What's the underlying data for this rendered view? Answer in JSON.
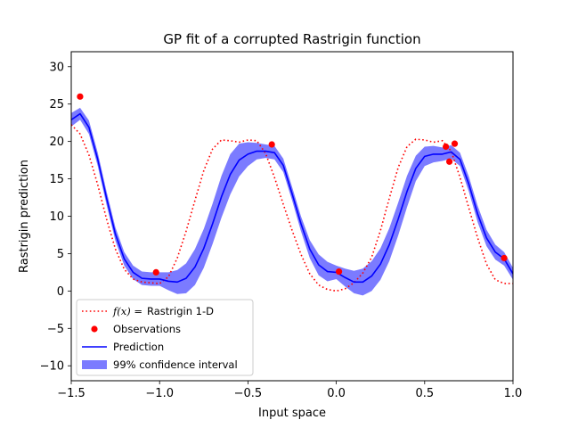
{
  "chart_data": {
    "type": "line",
    "title": "GP fit of a corrupted Rastrigin function",
    "xlabel": "Input space",
    "ylabel": "Rastrigin prediction",
    "xlim": [
      -1.5,
      1.0
    ],
    "ylim": [
      -12,
      32
    ],
    "x_ticks": [
      -1.5,
      -1.0,
      -0.5,
      0.0,
      0.5,
      1.0
    ],
    "x_tick_labels": [
      "−1.5",
      "−1.0",
      "−0.5",
      "0.0",
      "0.5",
      "1.0"
    ],
    "y_ticks": [
      -10,
      -5,
      0,
      5,
      10,
      15,
      20,
      25,
      30
    ],
    "y_tick_labels": [
      "−10",
      "−5",
      "0",
      "5",
      "10",
      "15",
      "20",
      "25",
      "30"
    ],
    "grid": false,
    "legend_position": "lower-left",
    "colors": {
      "true_function": "#ff0000",
      "observations": "#ff0000",
      "prediction": "#0000ff",
      "confidence": "#7b7bff"
    },
    "series": [
      {
        "name": "Rastrigin 1-D",
        "legend_prefix": "f(x) =",
        "style": "dotted",
        "x": [
          -1.5,
          -1.45,
          -1.4,
          -1.35,
          -1.3,
          -1.25,
          -1.2,
          -1.15,
          -1.1,
          -1.05,
          -1.0,
          -0.95,
          -0.9,
          -0.85,
          -0.8,
          -0.75,
          -0.7,
          -0.65,
          -0.6,
          -0.55,
          -0.5,
          -0.45,
          -0.4,
          -0.35,
          -0.3,
          -0.25,
          -0.2,
          -0.15,
          -0.1,
          -0.05,
          0.0,
          0.05,
          0.1,
          0.15,
          0.2,
          0.25,
          0.3,
          0.35,
          0.4,
          0.45,
          0.5,
          0.55,
          0.6,
          0.65,
          0.7,
          0.75,
          0.8,
          0.85,
          0.9,
          0.95,
          1.0
        ],
        "y": [
          22.25,
          21.0,
          18.2,
          14.2,
          9.6,
          5.6,
          2.9,
          1.6,
          1.2,
          1.1,
          1.0,
          1.9,
          4.4,
          8.0,
          12.1,
          16.1,
          19.0,
          20.2,
          20.1,
          19.9,
          20.2,
          20.1,
          18.4,
          15.2,
          11.6,
          8.1,
          4.9,
          2.3,
          0.8,
          0.2,
          0.0,
          0.3,
          1.1,
          2.4,
          4.5,
          8.1,
          12.4,
          16.5,
          19.3,
          20.3,
          20.2,
          19.9,
          20.1,
          18.7,
          15.2,
          11.1,
          7.1,
          3.6,
          1.5,
          1.0,
          1.0
        ]
      },
      {
        "name": "Observations",
        "style": "markers",
        "x": [
          -1.45,
          -1.02,
          -0.365,
          0.015,
          0.62,
          0.64,
          0.67,
          0.95
        ],
        "y": [
          26.0,
          2.5,
          19.6,
          2.6,
          19.3,
          17.3,
          19.7,
          4.4
        ]
      },
      {
        "name": "Prediction",
        "style": "solid",
        "x": [
          -1.5,
          -1.45,
          -1.4,
          -1.35,
          -1.3,
          -1.25,
          -1.2,
          -1.15,
          -1.1,
          -1.05,
          -1.0,
          -0.95,
          -0.9,
          -0.85,
          -0.8,
          -0.75,
          -0.7,
          -0.65,
          -0.6,
          -0.55,
          -0.5,
          -0.45,
          -0.4,
          -0.35,
          -0.3,
          -0.25,
          -0.2,
          -0.15,
          -0.1,
          -0.05,
          0.0,
          0.05,
          0.1,
          0.15,
          0.2,
          0.25,
          0.3,
          0.35,
          0.4,
          0.45,
          0.5,
          0.55,
          0.6,
          0.65,
          0.7,
          0.75,
          0.8,
          0.85,
          0.9,
          0.95,
          1.0
        ],
        "y": [
          22.9,
          23.7,
          21.9,
          17.6,
          12.4,
          7.6,
          4.3,
          2.5,
          1.7,
          1.6,
          1.6,
          1.3,
          1.2,
          1.7,
          3.2,
          5.7,
          9.0,
          12.6,
          15.6,
          17.5,
          18.3,
          18.7,
          18.7,
          18.5,
          16.8,
          13.0,
          9.0,
          5.6,
          3.5,
          2.6,
          2.5,
          1.8,
          1.2,
          1.2,
          2.0,
          3.6,
          6.2,
          9.6,
          13.3,
          16.4,
          18.0,
          18.3,
          18.3,
          18.6,
          17.6,
          14.3,
          10.3,
          7.1,
          5.2,
          4.3,
          2.3
        ]
      },
      {
        "name": "99% confidence interval",
        "style": "band",
        "x": [
          -1.5,
          -1.45,
          -1.4,
          -1.35,
          -1.3,
          -1.25,
          -1.2,
          -1.15,
          -1.1,
          -1.05,
          -1.0,
          -0.95,
          -0.9,
          -0.85,
          -0.8,
          -0.75,
          -0.7,
          -0.65,
          -0.6,
          -0.55,
          -0.5,
          -0.45,
          -0.4,
          -0.35,
          -0.3,
          -0.25,
          -0.2,
          -0.15,
          -0.1,
          -0.05,
          0.0,
          0.05,
          0.1,
          0.15,
          0.2,
          0.25,
          0.3,
          0.35,
          0.4,
          0.45,
          0.5,
          0.55,
          0.6,
          0.65,
          0.7,
          0.75,
          0.8,
          0.85,
          0.9,
          0.95,
          1.0
        ],
        "lower": [
          22.0,
          22.9,
          21.0,
          16.7,
          11.5,
          6.7,
          3.4,
          1.6,
          0.8,
          0.7,
          0.7,
          0.1,
          -0.4,
          -0.3,
          0.8,
          3.1,
          6.3,
          9.8,
          12.9,
          15.3,
          16.7,
          17.6,
          17.8,
          17.6,
          15.9,
          12.1,
          8.0,
          4.4,
          2.1,
          1.3,
          1.6,
          0.6,
          -0.3,
          -0.6,
          0.0,
          1.5,
          4.0,
          7.4,
          11.2,
          14.7,
          16.7,
          17.2,
          17.4,
          17.7,
          16.7,
          13.3,
          9.2,
          6.0,
          4.2,
          3.4,
          1.5
        ],
        "upper": [
          23.8,
          24.5,
          22.8,
          18.5,
          13.3,
          8.5,
          5.2,
          3.4,
          2.6,
          2.5,
          2.5,
          2.5,
          2.8,
          3.7,
          5.6,
          8.3,
          11.7,
          15.4,
          18.3,
          19.7,
          19.9,
          19.8,
          19.6,
          19.4,
          17.7,
          13.9,
          10.0,
          6.8,
          4.9,
          3.9,
          3.4,
          3.0,
          2.7,
          3.0,
          4.0,
          5.7,
          8.4,
          11.8,
          15.4,
          18.1,
          19.3,
          19.4,
          19.2,
          19.5,
          18.5,
          15.3,
          11.4,
          8.2,
          6.2,
          5.2,
          3.1
        ]
      }
    ]
  }
}
